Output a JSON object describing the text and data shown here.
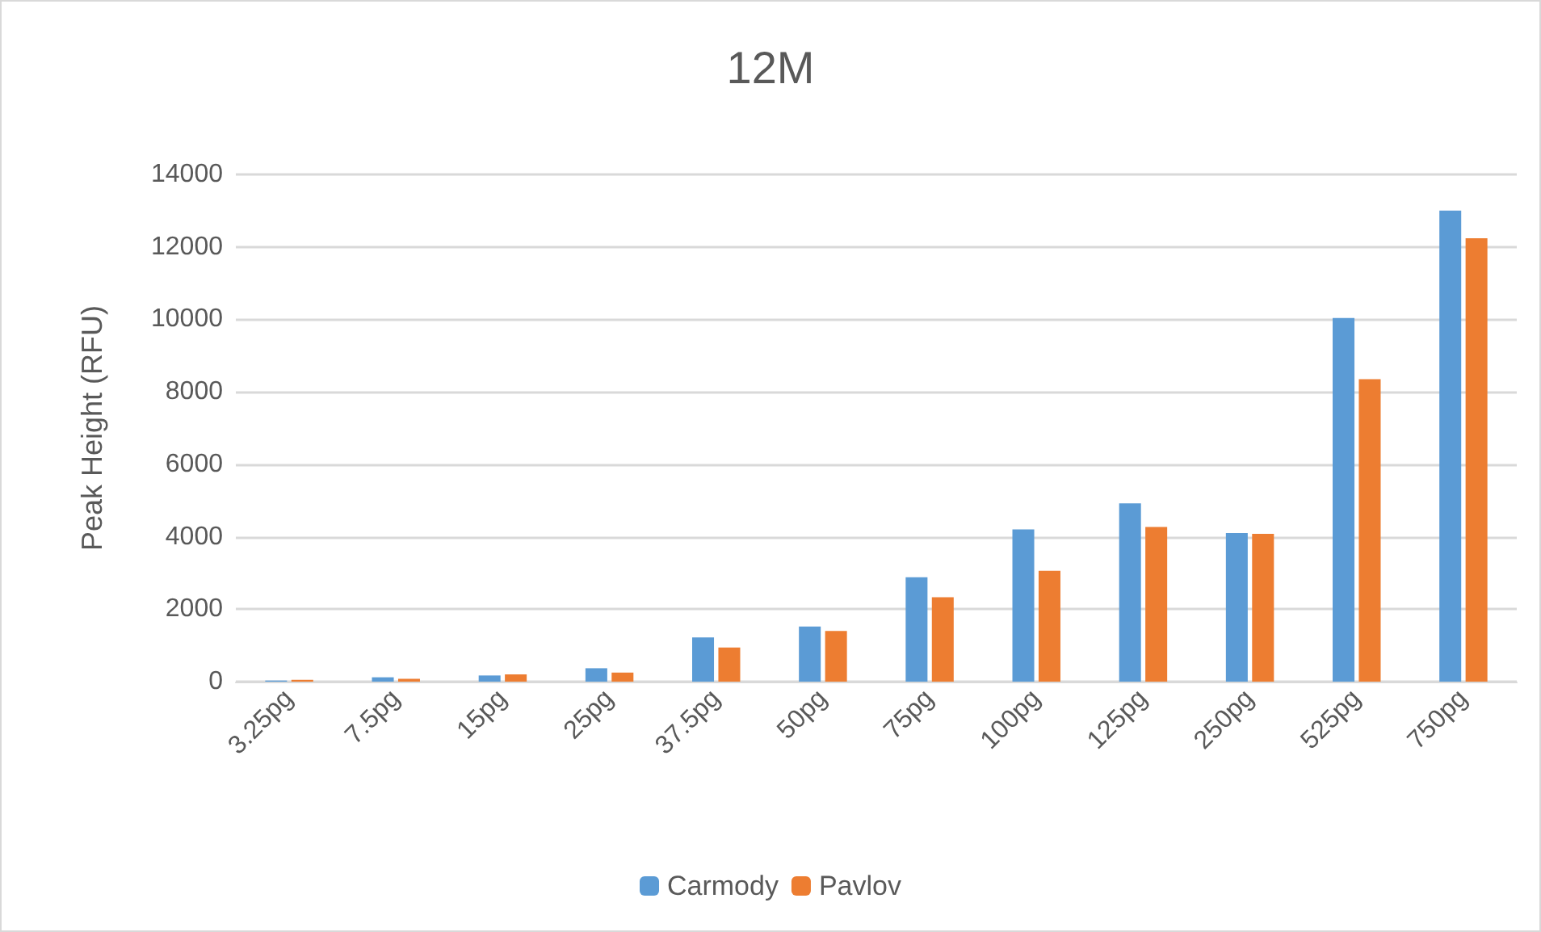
{
  "chart_data": {
    "type": "bar",
    "title": "12M",
    "ylabel": "Peak Height (RFU)",
    "categories": [
      "3.25pg",
      "7.5pg",
      "15pg",
      "25pg",
      "37.5pg",
      "50pg",
      "75pg",
      "100pg",
      "125pg",
      "250pg",
      "525pg",
      "750pg"
    ],
    "series": [
      {
        "name": "Carmody",
        "color": "#5b9bd5",
        "values": [
          30,
          120,
          170,
          370,
          1220,
          1520,
          2880,
          4200,
          4920,
          4100,
          10040,
          13000
        ]
      },
      {
        "name": "Pavlov",
        "color": "#ed7d31",
        "values": [
          50,
          80,
          200,
          250,
          940,
          1400,
          2330,
          3060,
          4270,
          4080,
          8350,
          12240
        ]
      }
    ],
    "ylim": [
      0,
      14000
    ],
    "yticks": [
      0,
      2000,
      4000,
      6000,
      8000,
      10000,
      12000,
      14000
    ],
    "grid": "y",
    "legend": "bottom"
  }
}
